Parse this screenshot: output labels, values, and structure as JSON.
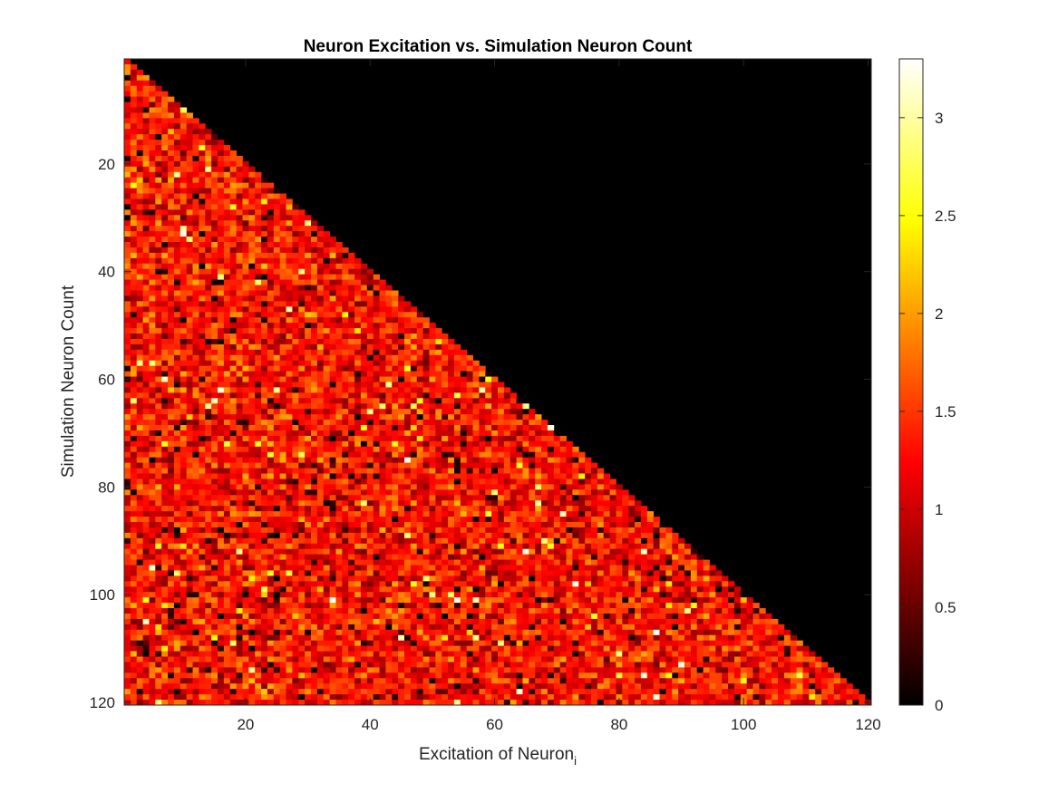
{
  "chart_data": {
    "type": "heatmap",
    "title": "Neuron Excitation vs. Simulation Neuron Count",
    "xlabel": "Excitation of Neuron",
    "xlabel_subscript": "i",
    "ylabel": "Simulation Neuron Count",
    "x_range": [
      1,
      120
    ],
    "y_range": [
      1,
      120
    ],
    "y_direction": "reversed",
    "x_ticks": [
      20,
      40,
      60,
      80,
      100,
      120
    ],
    "y_ticks": [
      20,
      40,
      60,
      80,
      100,
      120
    ],
    "colormap": "hot",
    "color_range": [
      0,
      3.3
    ],
    "colorbar_ticks": [
      0,
      0.5,
      1,
      1.5,
      2,
      2.5,
      3
    ],
    "mask": "lower-triangular",
    "masked_value": 0,
    "value_distribution": {
      "typical_min": 0.3,
      "typical_max": 2.3,
      "mean": 1.2,
      "max": 3.3
    },
    "grid": false,
    "colorbar": "right"
  }
}
